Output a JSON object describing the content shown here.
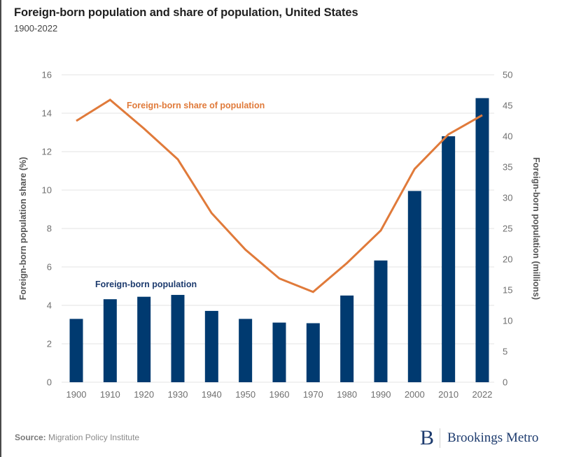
{
  "header": {
    "title": "Foreign-born population and share of population, United States",
    "subtitle": "1900-2022"
  },
  "footer": {
    "source_label": "Source:",
    "source_text": "Migration Policy Institute",
    "logo_mark": "B",
    "logo_text": "Brookings Metro"
  },
  "colors": {
    "bar": "#003a70",
    "line": "#e07a3a",
    "grid": "#e3e3e3",
    "bar_label": "#1d3b6e",
    "line_label": "#e07a3a"
  },
  "chart_data": {
    "type": "bar+line",
    "title": "Foreign-born population and share of population, United States",
    "subtitle": "1900-2022",
    "categories": [
      "1900",
      "1910",
      "1920",
      "1930",
      "1940",
      "1950",
      "1960",
      "1970",
      "1980",
      "1990",
      "2000",
      "2010",
      "2022"
    ],
    "series": [
      {
        "name": "Foreign-born population",
        "type": "bar",
        "axis": "right",
        "unit": "millions",
        "values": [
          10.3,
          13.5,
          13.9,
          14.2,
          11.6,
          10.3,
          9.7,
          9.6,
          14.1,
          19.8,
          31.1,
          40.0,
          46.2
        ]
      },
      {
        "name": "Foreign-born share of population",
        "type": "line",
        "axis": "left",
        "unit": "%",
        "values": [
          13.6,
          14.7,
          13.2,
          11.6,
          8.8,
          6.9,
          5.4,
          4.7,
          6.2,
          7.9,
          11.1,
          12.9,
          13.9
        ]
      }
    ],
    "ylabel_left": "Foreign-born population share (%)",
    "ylabel_right": "Foreign-born population (millions)",
    "ylim_left": [
      0,
      16
    ],
    "ylim_right": [
      0,
      50
    ],
    "yticks_left": [
      "0",
      "2",
      "4",
      "6",
      "8",
      "10",
      "12",
      "14",
      "16"
    ],
    "yticks_right": [
      "0",
      "5",
      "10",
      "15",
      "20",
      "25",
      "30",
      "35",
      "40",
      "45",
      "50"
    ],
    "grid": true,
    "annotations": [
      {
        "text": "Foreign-born share of population",
        "series": "line",
        "near": "1910-1930, upper"
      },
      {
        "text": "Foreign-born population",
        "series": "bar",
        "near": "1910-1930, above bars"
      }
    ],
    "legend": "none (inline annotations)"
  }
}
